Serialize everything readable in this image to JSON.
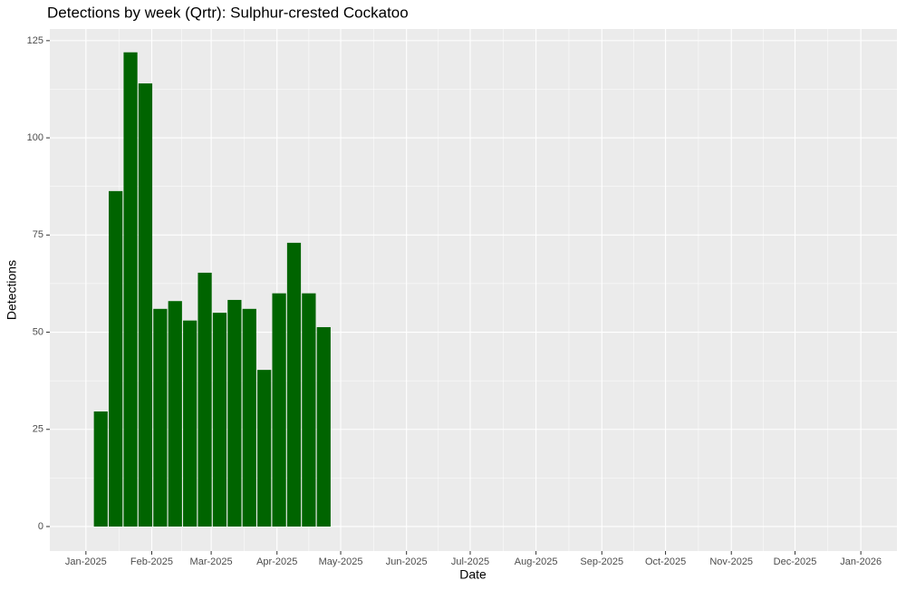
{
  "chart_data": {
    "type": "bar",
    "title": "Detections by week (Qrtr): Sulphur-crested Cockatoo",
    "x_label": "Date",
    "y_label": "Detections",
    "x": [
      "2025-01-08",
      "2025-01-15",
      "2025-01-22",
      "2025-01-29",
      "2025-02-05",
      "2025-02-12",
      "2025-02-19",
      "2025-02-26",
      "2025-03-05",
      "2025-03-12",
      "2025-03-19",
      "2025-03-26",
      "2025-04-02",
      "2025-04-09",
      "2025-04-16",
      "2025-04-23"
    ],
    "values": [
      29.6,
      86.3,
      122,
      114,
      56,
      58,
      53,
      65.3,
      55,
      58.3,
      56,
      40.3,
      60,
      73,
      60,
      51.3
    ],
    "color": "#006400",
    "xlim": [
      "2024-12-15",
      "2026-01-18"
    ],
    "xticks": [
      {
        "value": "2025-01-01",
        "label": "Jan-2025"
      },
      {
        "value": "2025-02-01",
        "label": "Feb-2025"
      },
      {
        "value": "2025-03-01",
        "label": "Mar-2025"
      },
      {
        "value": "2025-04-01",
        "label": "Apr-2025"
      },
      {
        "value": "2025-05-01",
        "label": "May-2025"
      },
      {
        "value": "2025-06-01",
        "label": "Jun-2025"
      },
      {
        "value": "2025-07-01",
        "label": "Jul-2025"
      },
      {
        "value": "2025-08-01",
        "label": "Aug-2025"
      },
      {
        "value": "2025-09-01",
        "label": "Sep-2025"
      },
      {
        "value": "2025-10-01",
        "label": "Oct-2025"
      },
      {
        "value": "2025-11-01",
        "label": "Nov-2025"
      },
      {
        "value": "2025-12-01",
        "label": "Dec-2025"
      },
      {
        "value": "2026-01-01",
        "label": "Jan-2026"
      }
    ],
    "ylim": [
      -6.3,
      128
    ],
    "yticks": [
      0,
      25,
      50,
      75,
      100,
      125
    ],
    "grid": true
  }
}
